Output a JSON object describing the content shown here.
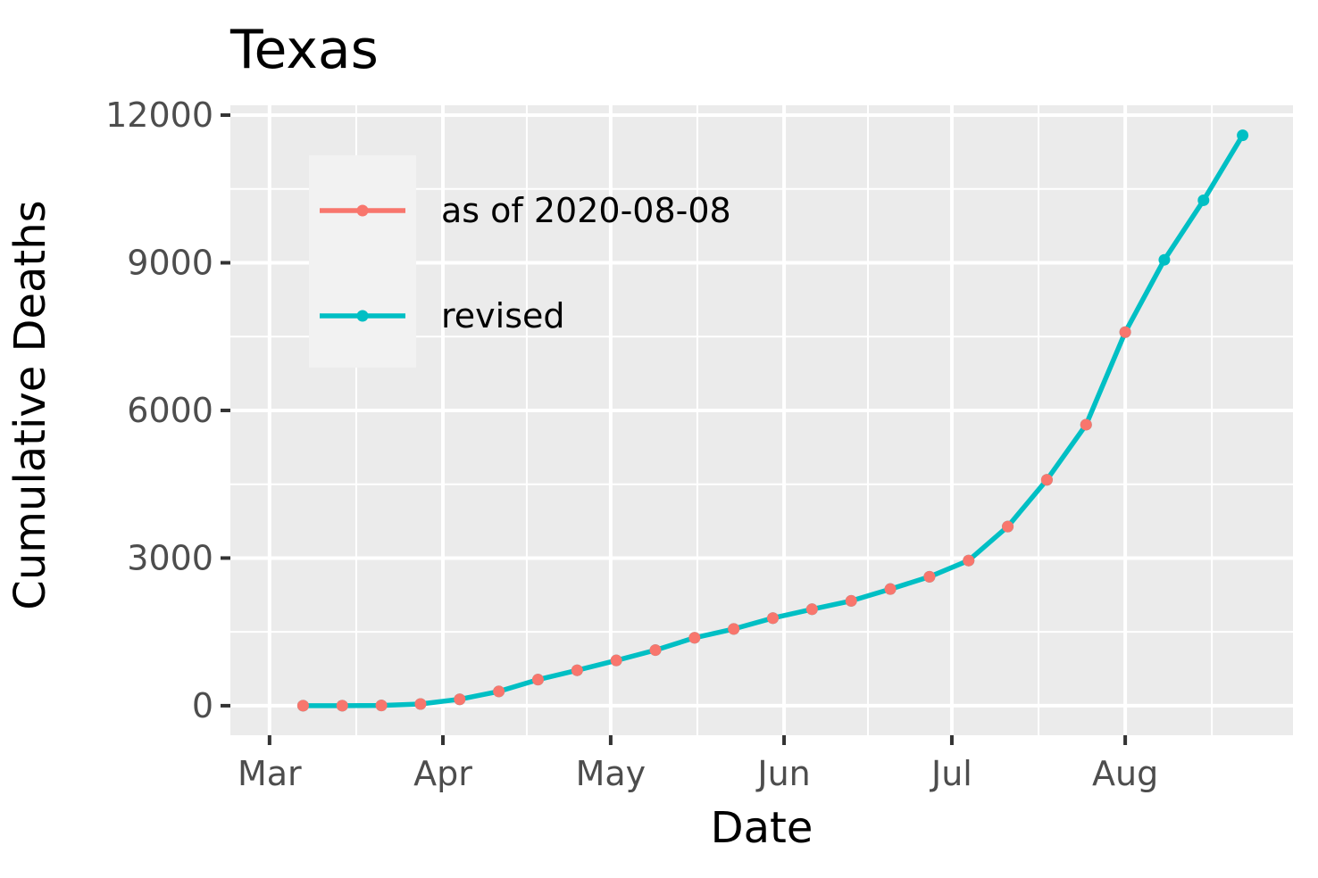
{
  "chart_data": {
    "type": "line",
    "title": "Texas",
    "xlabel": "Date",
    "ylabel": "Cumulative Deaths",
    "x_ticks": [
      "Mar",
      "Apr",
      "May",
      "Jun",
      "Jul",
      "Aug"
    ],
    "x_tick_dates": [
      "2020-03-01",
      "2020-04-01",
      "2020-05-01",
      "2020-06-01",
      "2020-07-01",
      "2020-08-01"
    ],
    "xlim": [
      "2020-02-23",
      "2020-08-31"
    ],
    "y_ticks": [
      0,
      3000,
      6000,
      9000,
      12000
    ],
    "ylim": [
      -600,
      12200
    ],
    "grid": true,
    "legend_position": "top-left inside",
    "series": [
      {
        "name": "as of 2020-08-08",
        "color": "#F8766D",
        "line_visible": false,
        "points": [
          {
            "x": "2020-03-07",
            "y": 0
          },
          {
            "x": "2020-03-14",
            "y": 0
          },
          {
            "x": "2020-03-21",
            "y": 5
          },
          {
            "x": "2020-03-28",
            "y": 35
          },
          {
            "x": "2020-04-04",
            "y": 130
          },
          {
            "x": "2020-04-11",
            "y": 290
          },
          {
            "x": "2020-04-18",
            "y": 530
          },
          {
            "x": "2020-04-25",
            "y": 720
          },
          {
            "x": "2020-05-02",
            "y": 920
          },
          {
            "x": "2020-05-09",
            "y": 1130
          },
          {
            "x": "2020-05-16",
            "y": 1380
          },
          {
            "x": "2020-05-23",
            "y": 1560
          },
          {
            "x": "2020-05-30",
            "y": 1780
          },
          {
            "x": "2020-06-06",
            "y": 1960
          },
          {
            "x": "2020-06-13",
            "y": 2130
          },
          {
            "x": "2020-06-20",
            "y": 2370
          },
          {
            "x": "2020-06-27",
            "y": 2620
          },
          {
            "x": "2020-07-04",
            "y": 2950
          },
          {
            "x": "2020-07-11",
            "y": 3640
          },
          {
            "x": "2020-07-18",
            "y": 4590
          },
          {
            "x": "2020-07-25",
            "y": 5710
          },
          {
            "x": "2020-08-01",
            "y": 7590
          }
        ]
      },
      {
        "name": "revised",
        "color": "#00BFC4",
        "line_visible": true,
        "points": [
          {
            "x": "2020-03-07",
            "y": 0
          },
          {
            "x": "2020-03-14",
            "y": 0
          },
          {
            "x": "2020-03-21",
            "y": 5
          },
          {
            "x": "2020-03-28",
            "y": 35
          },
          {
            "x": "2020-04-04",
            "y": 130
          },
          {
            "x": "2020-04-11",
            "y": 290
          },
          {
            "x": "2020-04-18",
            "y": 530
          },
          {
            "x": "2020-04-25",
            "y": 720
          },
          {
            "x": "2020-05-02",
            "y": 920
          },
          {
            "x": "2020-05-09",
            "y": 1130
          },
          {
            "x": "2020-05-16",
            "y": 1380
          },
          {
            "x": "2020-05-23",
            "y": 1560
          },
          {
            "x": "2020-05-30",
            "y": 1780
          },
          {
            "x": "2020-06-06",
            "y": 1960
          },
          {
            "x": "2020-06-13",
            "y": 2130
          },
          {
            "x": "2020-06-20",
            "y": 2370
          },
          {
            "x": "2020-06-27",
            "y": 2620
          },
          {
            "x": "2020-07-04",
            "y": 2950
          },
          {
            "x": "2020-07-11",
            "y": 3640
          },
          {
            "x": "2020-07-18",
            "y": 4590
          },
          {
            "x": "2020-07-25",
            "y": 5710
          },
          {
            "x": "2020-08-01",
            "y": 7590
          },
          {
            "x": "2020-08-08",
            "y": 9060
          },
          {
            "x": "2020-08-15",
            "y": 10270
          },
          {
            "x": "2020-08-22",
            "y": 11590
          }
        ]
      }
    ]
  }
}
